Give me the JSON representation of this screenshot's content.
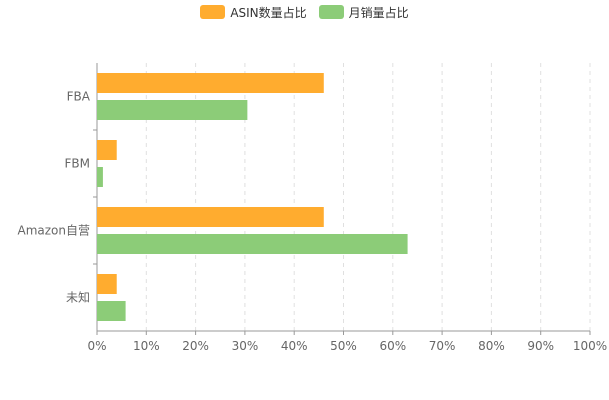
{
  "chart_data": {
    "type": "bar",
    "orientation": "horizontal",
    "categories": [
      "FBA",
      "FBM",
      "Amazon自营",
      "未知"
    ],
    "series": [
      {
        "name": "ASIN数量占比",
        "color": "#FFAC2F",
        "values": [
          46,
          4,
          46,
          4
        ]
      },
      {
        "name": "月销量占比",
        "color": "#8CCC78",
        "values": [
          30.5,
          1.2,
          63,
          5.8
        ]
      }
    ],
    "x_ticks": [
      "0%",
      "10%",
      "20%",
      "30%",
      "40%",
      "50%",
      "60%",
      "70%",
      "80%",
      "90%",
      "100%"
    ],
    "xlim": [
      0,
      100
    ],
    "grid": "vertical-dashed",
    "legend_position": "top-center"
  }
}
